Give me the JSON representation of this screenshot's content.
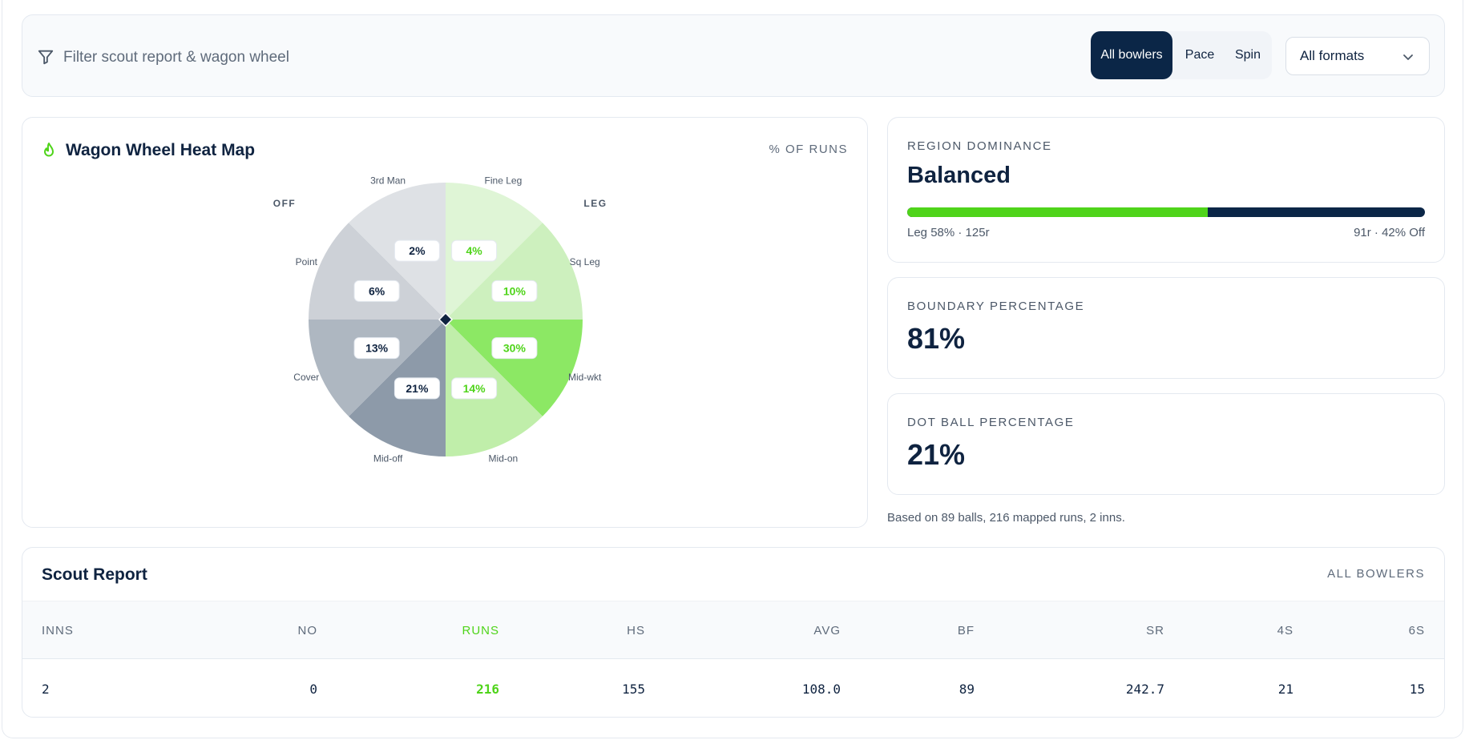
{
  "filter": {
    "placeholder": "Filter scout report & wagon wheel",
    "bowler_segments": [
      "All bowlers",
      "Pace",
      "Spin"
    ],
    "active_segment": "All bowlers",
    "format_value": "All formats"
  },
  "wagon_wheel": {
    "title": "Wagon Wheel Heat Map",
    "unit_label": "% OF RUNS",
    "side_off": "OFF",
    "side_leg": "LEG",
    "regions": [
      {
        "name": "Fine Leg",
        "pct": "4%",
        "side": "leg",
        "color": "#dff5d6"
      },
      {
        "name": "Sq Leg",
        "pct": "10%",
        "side": "leg",
        "color": "#cdf0be"
      },
      {
        "name": "Mid-wkt",
        "pct": "30%",
        "side": "leg",
        "color": "#8ce864"
      },
      {
        "name": "Mid-on",
        "pct": "14%",
        "side": "leg",
        "color": "#c0eeaa"
      },
      {
        "name": "Mid-off",
        "pct": "21%",
        "side": "off",
        "color": "#8d9aa9"
      },
      {
        "name": "Cover",
        "pct": "13%",
        "side": "off",
        "color": "#aeb7c1"
      },
      {
        "name": "Point",
        "pct": "6%",
        "side": "off",
        "color": "#cdd1d7"
      },
      {
        "name": "3rd Man",
        "pct": "2%",
        "side": "off",
        "color": "#dee1e5"
      }
    ],
    "colors": {
      "leg_text": "#4fd41a",
      "off_text": "#0f2340",
      "batter_marker": "#0f2340"
    }
  },
  "region_dominance": {
    "label": "REGION DOMINANCE",
    "value": "Balanced",
    "leg_fraction": 0.58,
    "left_caption": "Leg 58% · 125r",
    "right_caption": "91r · 42% Off"
  },
  "boundary": {
    "label": "BOUNDARY PERCENTAGE",
    "value": "81%"
  },
  "dot_ball": {
    "label": "DOT BALL PERCENTAGE",
    "value": "21%"
  },
  "note": "Based on 89 balls, 216 mapped runs, 2 inns.",
  "scout_report": {
    "title": "Scout Report",
    "filter_label": "ALL BOWLERS",
    "columns": [
      "INNS",
      "NO",
      "RUNS",
      "HS",
      "AVG",
      "BF",
      "SR",
      "4S",
      "6S"
    ],
    "values": [
      "2",
      "0",
      "216",
      "155",
      "108.0",
      "89",
      "242.7",
      "21",
      "15"
    ]
  }
}
